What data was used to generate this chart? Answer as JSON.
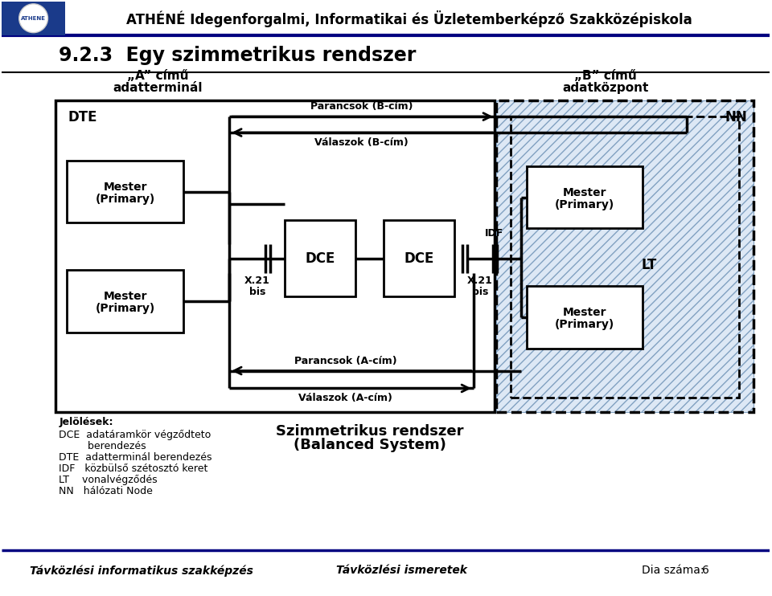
{
  "title_school": "ATHÉNÉ Idegenforgalmi, Informatikai és Üzletemberképző Szakközépiskola",
  "section_title": "9.2.3  Egy szimmetrikus rendszer",
  "label_A_line1": "„A” című",
  "label_A_line2": "adatterminál",
  "label_B_line1": "„B” című",
  "label_B_line2": "adatközpont",
  "label_DTE": "DTE",
  "label_NN": "NN",
  "label_IDF": "IDF",
  "label_LT": "LT",
  "label_X21bis_left_1": "X.21",
  "label_X21bis_left_2": "bis",
  "label_X21bis_right_1": "X.21",
  "label_X21bis_right_2": "bis",
  "label_DCE_left": "DCE",
  "label_DCE_right": "DCE",
  "label_Parancsok_B": "Parancsok (B-cím)",
  "label_Valaszok_B": "Válaszok (B-cím)",
  "label_Parancsok_A": "Parancsok (A-cím)",
  "label_Valaszok_A": "Válaszok (A-cím)",
  "label_Mester_line1": "Mester",
  "label_Mester_line2": "(Primary)",
  "legend_title": "Jelölések:",
  "legend_DCE_1": "DCE  adatáramkör végződteto",
  "legend_DCE_2": "         berendezés",
  "legend_DTE": "DTE  adatterminál berendezés",
  "legend_IDF": "IDF   közbülső szétosztó keret",
  "legend_LT": "LT    vonalvégződés",
  "legend_NN": "NN   hálózati Node",
  "balanced_1": "Szimmetrikus rendszer",
  "balanced_2": "(Balanced System)",
  "footer_left": "Távközlési informatikus szakképzés",
  "footer_mid": "Távközlési ismeretek",
  "footer_right": "Dia száma:",
  "footer_num": "6",
  "bg_color": "#ffffff",
  "hatch_color": "#7799bb",
  "header_line_color": "#000080"
}
